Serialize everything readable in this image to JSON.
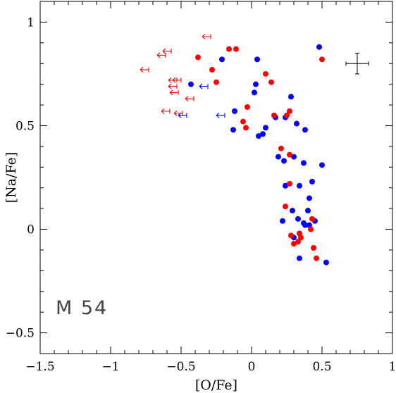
{
  "chart_data": {
    "type": "scatter",
    "xlabel": "[O/Fe]",
    "ylabel": "[Na/Fe]",
    "xlim": [
      -1.5,
      1
    ],
    "ylim": [
      -0.6,
      1.1
    ],
    "x_ticks": [
      "−1.5",
      "−1",
      "−0.5",
      "0",
      "0.5",
      "1"
    ],
    "x_tick_values": [
      -1.5,
      -1,
      -0.5,
      0,
      0.5,
      1
    ],
    "y_ticks": [
      "−0.5",
      "0",
      "0.5",
      "1"
    ],
    "y_tick_values": [
      -0.5,
      0,
      0.5,
      1
    ],
    "annotation": "M 54",
    "error_bar": {
      "x": 0.75,
      "y": 0.8,
      "x_err": 0.08,
      "y_err": 0.05
    },
    "series": [
      {
        "color": "#0000ff",
        "marker": "circle",
        "points": [
          [
            0.48,
            0.88
          ],
          [
            -0.21,
            0.82
          ],
          [
            0.04,
            0.82
          ],
          [
            -0.43,
            0.7
          ],
          [
            0.03,
            0.7
          ],
          [
            0.02,
            0.66
          ],
          [
            0.28,
            0.64
          ],
          [
            -0.12,
            0.57
          ],
          [
            0.17,
            0.54
          ],
          [
            0.24,
            0.54
          ],
          [
            0.32,
            0.51
          ],
          [
            0.38,
            0.48
          ],
          [
            0.1,
            0.49
          ],
          [
            -0.13,
            0.48
          ],
          [
            0.08,
            0.46
          ],
          [
            0.05,
            0.45
          ],
          [
            0.19,
            0.35
          ],
          [
            0.3,
            0.35
          ],
          [
            0.23,
            0.33
          ],
          [
            0.37,
            0.32
          ],
          [
            0.5,
            0.31
          ],
          [
            0.43,
            0.23
          ],
          [
            0.24,
            0.21
          ],
          [
            0.34,
            0.21
          ],
          [
            0.41,
            0.15
          ],
          [
            0.29,
            0.09
          ],
          [
            0.4,
            0.09
          ],
          [
            0.22,
            0.04
          ],
          [
            0.33,
            0.05
          ],
          [
            0.37,
            0.03
          ],
          [
            0.38,
            0.02
          ],
          [
            0.41,
            0.02
          ],
          [
            0.45,
            0.04
          ],
          [
            0.3,
            -0.04
          ],
          [
            0.34,
            -0.14
          ],
          [
            0.53,
            -0.16
          ]
        ]
      },
      {
        "color": "#ff0000",
        "marker": "circle",
        "points": [
          [
            -0.16,
            0.87
          ],
          [
            -0.11,
            0.87
          ],
          [
            0.5,
            0.82
          ],
          [
            -0.38,
            0.83
          ],
          [
            -0.28,
            0.77
          ],
          [
            0.1,
            0.75
          ],
          [
            -0.25,
            0.71
          ],
          [
            0.14,
            0.71
          ],
          [
            -0.03,
            0.59
          ],
          [
            0.27,
            0.57
          ],
          [
            0.25,
            0.55
          ],
          [
            0.16,
            0.55
          ],
          [
            -0.06,
            0.52
          ],
          [
            -0.04,
            0.49
          ],
          [
            0.21,
            0.39
          ],
          [
            0.27,
            0.36
          ],
          [
            0.27,
            0.22
          ],
          [
            0.24,
            0.11
          ],
          [
            0.43,
            0.05
          ],
          [
            0.42,
            0.0
          ],
          [
            0.28,
            -0.03
          ],
          [
            0.34,
            -0.02
          ],
          [
            0.35,
            -0.04
          ],
          [
            0.33,
            -0.06
          ],
          [
            0.3,
            -0.07
          ],
          [
            0.44,
            -0.09
          ],
          [
            0.46,
            -0.14
          ]
        ]
      },
      {
        "color": "#ff0000",
        "marker": "upper-limit-arrow",
        "points": [
          [
            -0.32,
            0.93
          ],
          [
            -0.6,
            0.86
          ],
          [
            -0.64,
            0.84
          ],
          [
            -0.76,
            0.77
          ],
          [
            -0.53,
            0.72
          ],
          [
            -0.56,
            0.72
          ],
          [
            -0.56,
            0.69
          ],
          [
            -0.55,
            0.66
          ],
          [
            -0.44,
            0.63
          ],
          [
            -0.61,
            0.57
          ],
          [
            -0.52,
            0.56
          ]
        ]
      },
      {
        "color": "#0000ff",
        "marker": "upper-limit-arrow",
        "points": [
          [
            -0.34,
            0.69
          ],
          [
            -0.49,
            0.55
          ],
          [
            -0.22,
            0.55
          ]
        ]
      }
    ]
  }
}
